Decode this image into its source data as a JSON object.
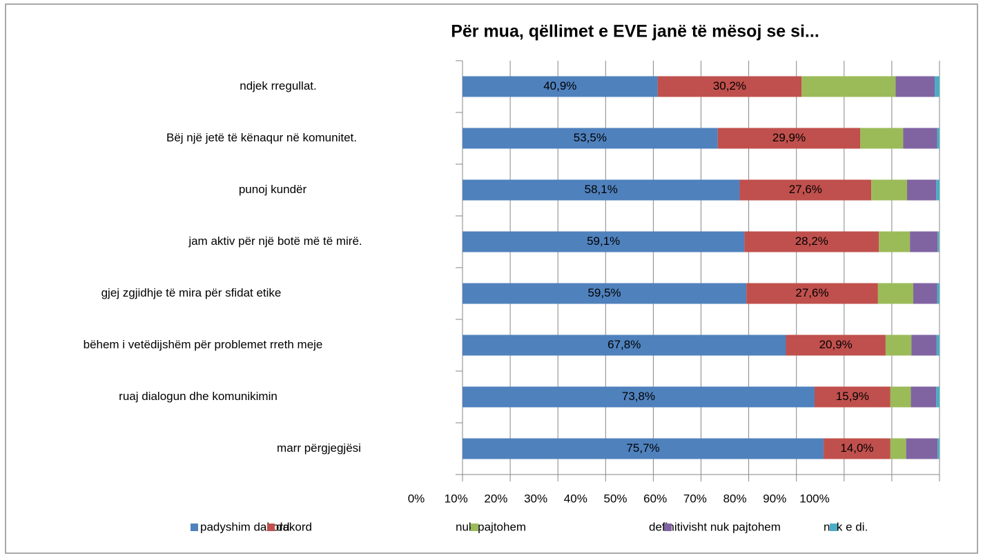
{
  "chart_data": {
    "type": "stacked_barh",
    "title": "Për mua, qëllimet e EVE janë të mësoj se si...",
    "categories": [
      "ndjek rregullat.",
      "Bëj një jetë të kënaqur në komunitet.",
      "punoj kundër",
      "jam aktiv për një botë më të mirë.",
      "gjej zgjidhje të mira për sfidat etike",
      "bëhem i vetëdijshëm për problemet rreth meje",
      "ruaj dialogun dhe komunikimin",
      "marr përgjegjësi"
    ],
    "series": [
      {
        "name": "padyshim dakord",
        "color": "#4f81bd",
        "values": [
          40.9,
          53.5,
          58.1,
          59.1,
          59.5,
          67.8,
          73.8,
          75.7
        ],
        "value_labels": [
          "40,9%",
          "53,5%",
          "58,1%",
          "59,1%",
          "59,5%",
          "67,8%",
          "73,8%",
          "75,7%"
        ]
      },
      {
        "name": "dakord",
        "color": "#c0504d",
        "values": [
          30.2,
          29.9,
          27.6,
          28.2,
          27.6,
          20.9,
          15.9,
          14.0
        ],
        "value_labels": [
          "30,2%",
          "29,9%",
          "27,6%",
          "28,2%",
          "27,6%",
          "20,9%",
          "15,9%",
          "14,0%"
        ]
      },
      {
        "name": "nuk pajtohem",
        "color": "#9bbb59",
        "values": [
          19.7,
          9.0,
          7.5,
          6.5,
          7.4,
          5.4,
          4.3,
          3.3
        ]
      },
      {
        "name": "definitivisht nuk pajtohem",
        "color": "#8064a2",
        "values": [
          8.2,
          7.1,
          6.1,
          5.8,
          5.0,
          5.3,
          5.3,
          6.6
        ]
      },
      {
        "name": "nuk e di.",
        "color": "#4bacc6",
        "values": [
          1.0,
          0.5,
          0.7,
          0.3,
          0.5,
          0.6,
          0.7,
          0.4
        ]
      }
    ],
    "xlim": [
      0,
      100
    ],
    "xticks": [
      {
        "value": 0,
        "label": "0%"
      },
      {
        "value": 10,
        "label": "10%"
      },
      {
        "value": 20,
        "label": "20%"
      },
      {
        "value": 30,
        "label": "30%"
      },
      {
        "value": 40,
        "label": "40%"
      },
      {
        "value": 50,
        "label": "50%"
      },
      {
        "value": 60,
        "label": "60%"
      },
      {
        "value": 70,
        "label": "70%"
      },
      {
        "value": 80,
        "label": "80%"
      },
      {
        "value": 90,
        "label": "90%"
      },
      {
        "value": 100,
        "label": "100%"
      }
    ],
    "grid": true,
    "legend": "bottom"
  }
}
